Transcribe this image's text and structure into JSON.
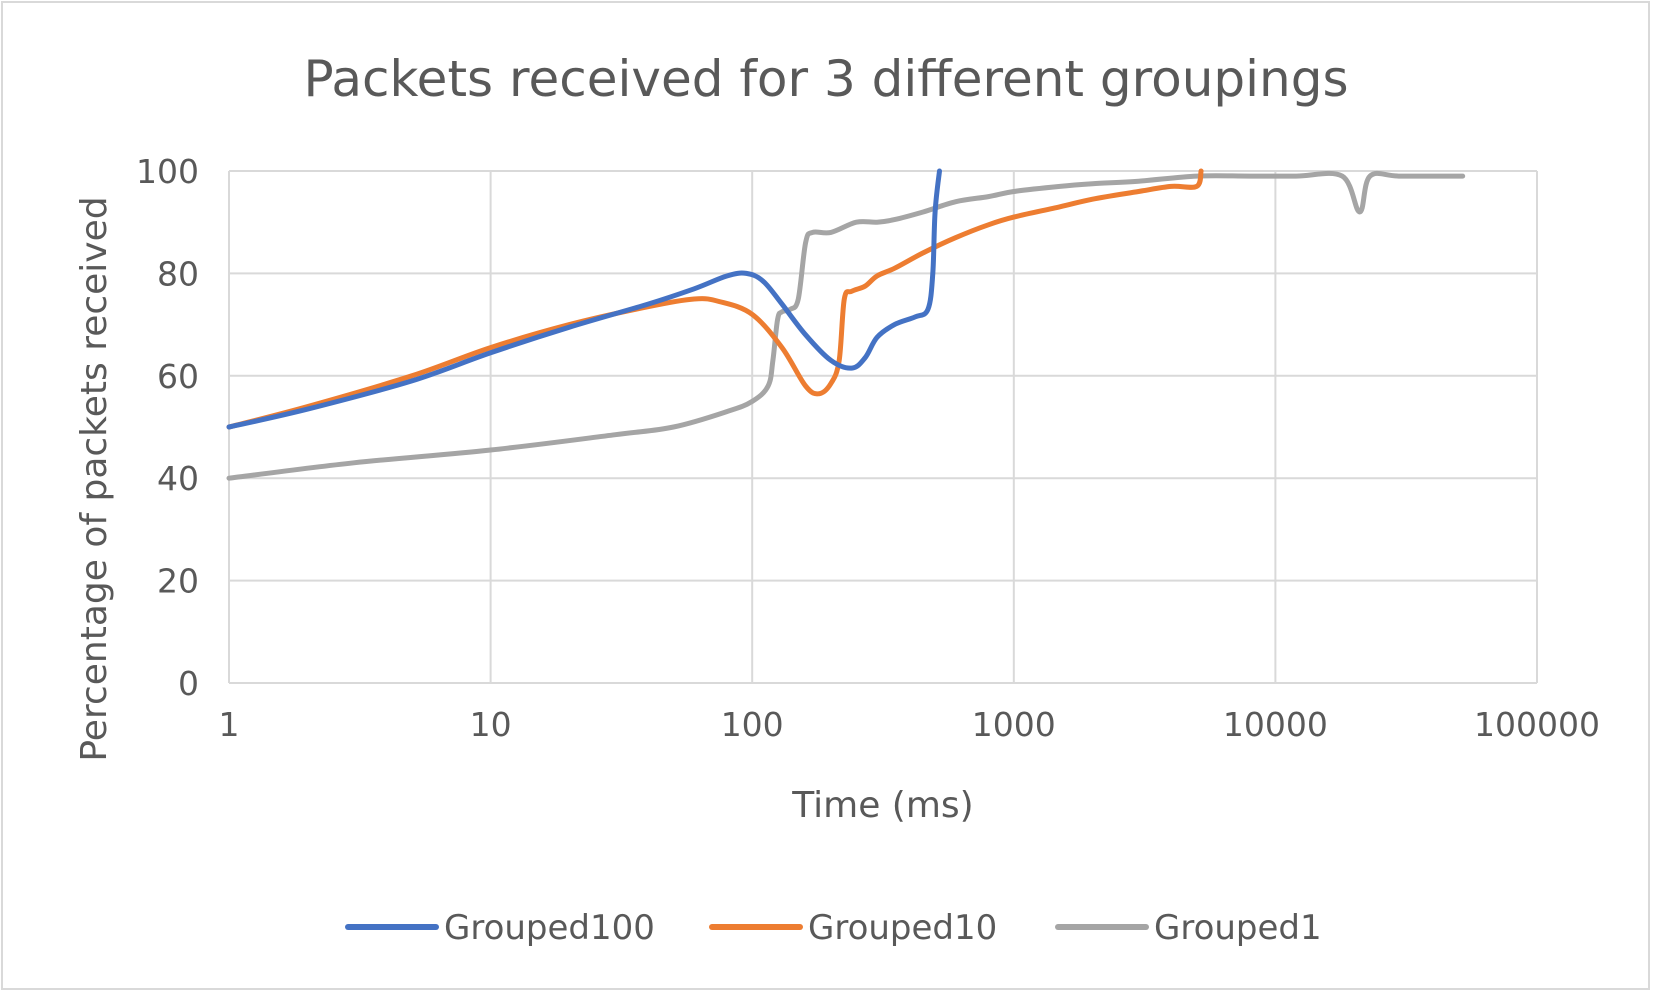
{
  "chart_data": {
    "type": "line",
    "title": "Packets received for 3 different groupings",
    "xlabel": "Time (ms)",
    "ylabel": "Percentage of packets received",
    "x_scale": "log",
    "xlim": [
      1,
      100000
    ],
    "ylim": [
      0,
      100
    ],
    "x_ticks": [
      "1",
      "10",
      "100",
      "1000",
      "10000",
      "100000"
    ],
    "y_ticks": [
      "0",
      "20",
      "40",
      "60",
      "80",
      "100"
    ],
    "grid": true,
    "legend_position": "bottom",
    "series": [
      {
        "name": "Grouped100",
        "color": "#4472c4",
        "points": [
          [
            1,
            50
          ],
          [
            2,
            53.5
          ],
          [
            5,
            59
          ],
          [
            10,
            64.5
          ],
          [
            20,
            69.5
          ],
          [
            40,
            74
          ],
          [
            60,
            77
          ],
          [
            80,
            79.5
          ],
          [
            95,
            80
          ],
          [
            110,
            78.5
          ],
          [
            130,
            74
          ],
          [
            160,
            68
          ],
          [
            200,
            63
          ],
          [
            240,
            61.5
          ],
          [
            270,
            63.5
          ],
          [
            300,
            67.5
          ],
          [
            350,
            70
          ],
          [
            420,
            71.5
          ],
          [
            470,
            73
          ],
          [
            490,
            80
          ],
          [
            500,
            92
          ],
          [
            520,
            100
          ]
        ]
      },
      {
        "name": "Grouped10",
        "color": "#ed7d31",
        "points": [
          [
            1,
            50
          ],
          [
            2,
            54
          ],
          [
            5,
            60
          ],
          [
            10,
            65.5
          ],
          [
            20,
            70
          ],
          [
            40,
            73.5
          ],
          [
            60,
            75
          ],
          [
            75,
            74.5
          ],
          [
            100,
            72
          ],
          [
            130,
            65.5
          ],
          [
            160,
            58
          ],
          [
            180,
            56.5
          ],
          [
            200,
            58.5
          ],
          [
            215,
            63
          ],
          [
            225,
            75
          ],
          [
            240,
            76.5
          ],
          [
            270,
            77.5
          ],
          [
            300,
            79.5
          ],
          [
            350,
            81
          ],
          [
            450,
            84
          ],
          [
            600,
            87
          ],
          [
            800,
            89.5
          ],
          [
            1000,
            91
          ],
          [
            1500,
            93
          ],
          [
            2000,
            94.5
          ],
          [
            3000,
            96
          ],
          [
            4000,
            97
          ],
          [
            5000,
            97
          ],
          [
            5200,
            100
          ]
        ]
      },
      {
        "name": "Grouped1",
        "color": "#a5a5a5",
        "points": [
          [
            1,
            40
          ],
          [
            3,
            43
          ],
          [
            10,
            45.5
          ],
          [
            30,
            48.5
          ],
          [
            50,
            50
          ],
          [
            80,
            53
          ],
          [
            100,
            55
          ],
          [
            115,
            58
          ],
          [
            120,
            63
          ],
          [
            125,
            71
          ],
          [
            130,
            72.5
          ],
          [
            140,
            73
          ],
          [
            150,
            75
          ],
          [
            160,
            86
          ],
          [
            170,
            88
          ],
          [
            200,
            88
          ],
          [
            250,
            90
          ],
          [
            300,
            90
          ],
          [
            350,
            90.5
          ],
          [
            450,
            92
          ],
          [
            600,
            94
          ],
          [
            800,
            95
          ],
          [
            1000,
            96
          ],
          [
            1500,
            97
          ],
          [
            2000,
            97.5
          ],
          [
            3000,
            98
          ],
          [
            5000,
            99
          ],
          [
            8000,
            99
          ],
          [
            12000,
            99
          ],
          [
            18000,
            99
          ],
          [
            21000,
            92
          ],
          [
            23000,
            99
          ],
          [
            30000,
            99
          ],
          [
            52000,
            99
          ]
        ]
      }
    ]
  }
}
